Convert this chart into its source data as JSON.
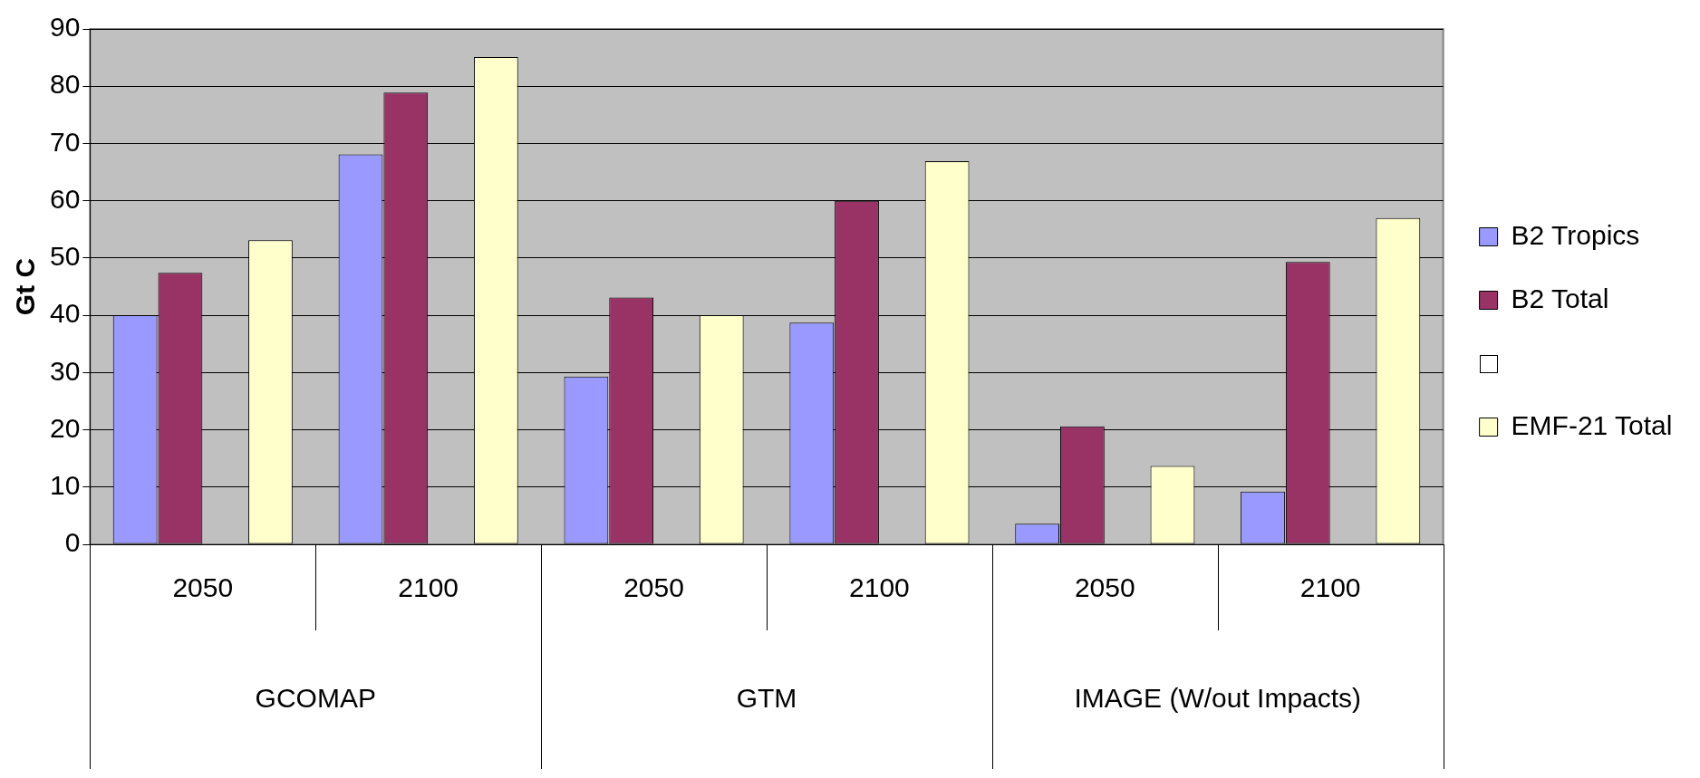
{
  "chart_data": {
    "type": "bar",
    "ylabel": "Gt C",
    "categories": [
      "2050",
      "2100",
      "2050",
      "2100",
      "2050",
      "2100"
    ],
    "annotations": [
      "GCOMAP",
      "GTM",
      "IMAGE (W/out Impacts)"
    ],
    "series": [
      {
        "name": "B2 Tropics",
        "color": "#9999ff",
        "values": [
          40,
          68.1,
          29.3,
          38.7,
          3.6,
          9.2
        ]
      },
      {
        "name": "B2 Total",
        "color": "#993366",
        "values": [
          47.4,
          78.9,
          43.1,
          60,
          20.6,
          49.3
        ]
      },
      {
        "color": "#ffffff",
        "values": [
          null,
          null,
          null,
          null,
          null,
          null
        ]
      },
      {
        "name": "EMF-21 Total",
        "color": "#ffffcc",
        "values": [
          53.1,
          85.1,
          40,
          66.9,
          13.7,
          57
        ]
      }
    ],
    "ylim": [
      0,
      90
    ],
    "yticks": [
      0,
      10,
      20,
      30,
      40,
      50,
      60,
      70,
      80,
      90
    ],
    "grid": "y",
    "legend": "right"
  }
}
